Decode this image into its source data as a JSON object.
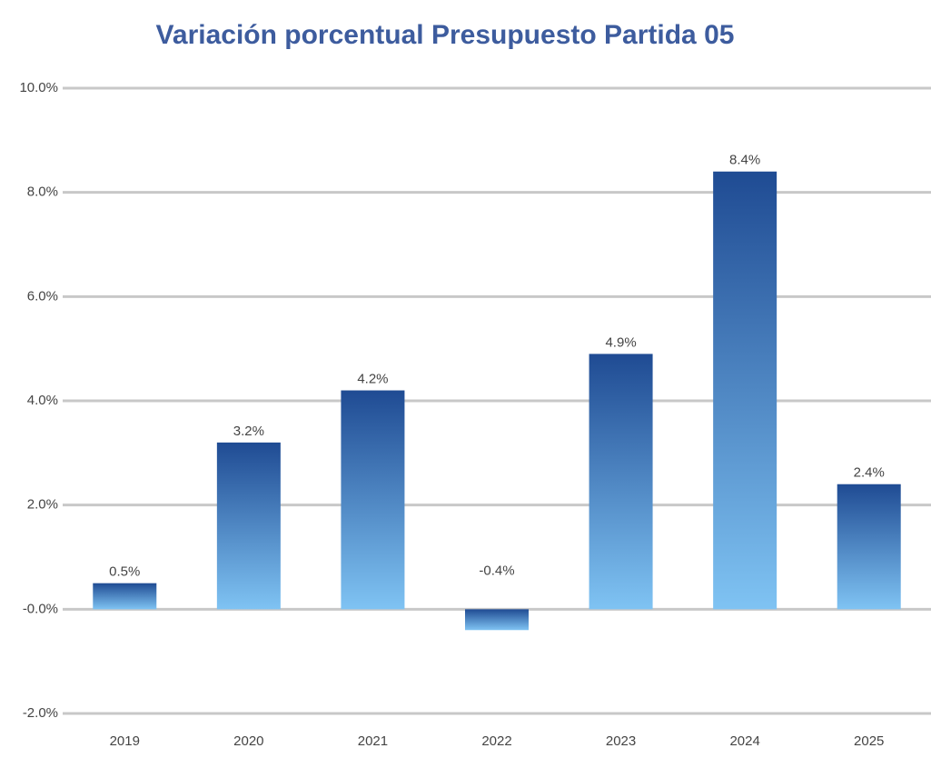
{
  "chart_data": {
    "type": "bar",
    "title": "Variación porcentual Presupuesto Partida 05",
    "categories": [
      "2019",
      "2020",
      "2021",
      "2022",
      "2023",
      "2024",
      "2025"
    ],
    "values": [
      0.5,
      3.2,
      4.2,
      -0.4,
      4.9,
      8.4,
      2.4
    ],
    "value_labels": [
      "0.5%",
      "3.2%",
      "4.2%",
      "-0.4%",
      "4.9%",
      "8.4%",
      "2.4%"
    ],
    "gradient": [
      "#1f4b93",
      "#7fc3f3"
    ],
    "ylim": [
      -2,
      10
    ],
    "yticks": [
      {
        "value": -2,
        "label": "-2.0%"
      },
      {
        "value": 0,
        "label": "-0.0%"
      },
      {
        "value": 2,
        "label": "2.0%"
      },
      {
        "value": 4,
        "label": "4.0%"
      },
      {
        "value": 6,
        "label": "6.0%"
      },
      {
        "value": 8,
        "label": "8.0%"
      },
      {
        "value": 10,
        "label": "10.0%"
      }
    ],
    "grid": true
  }
}
